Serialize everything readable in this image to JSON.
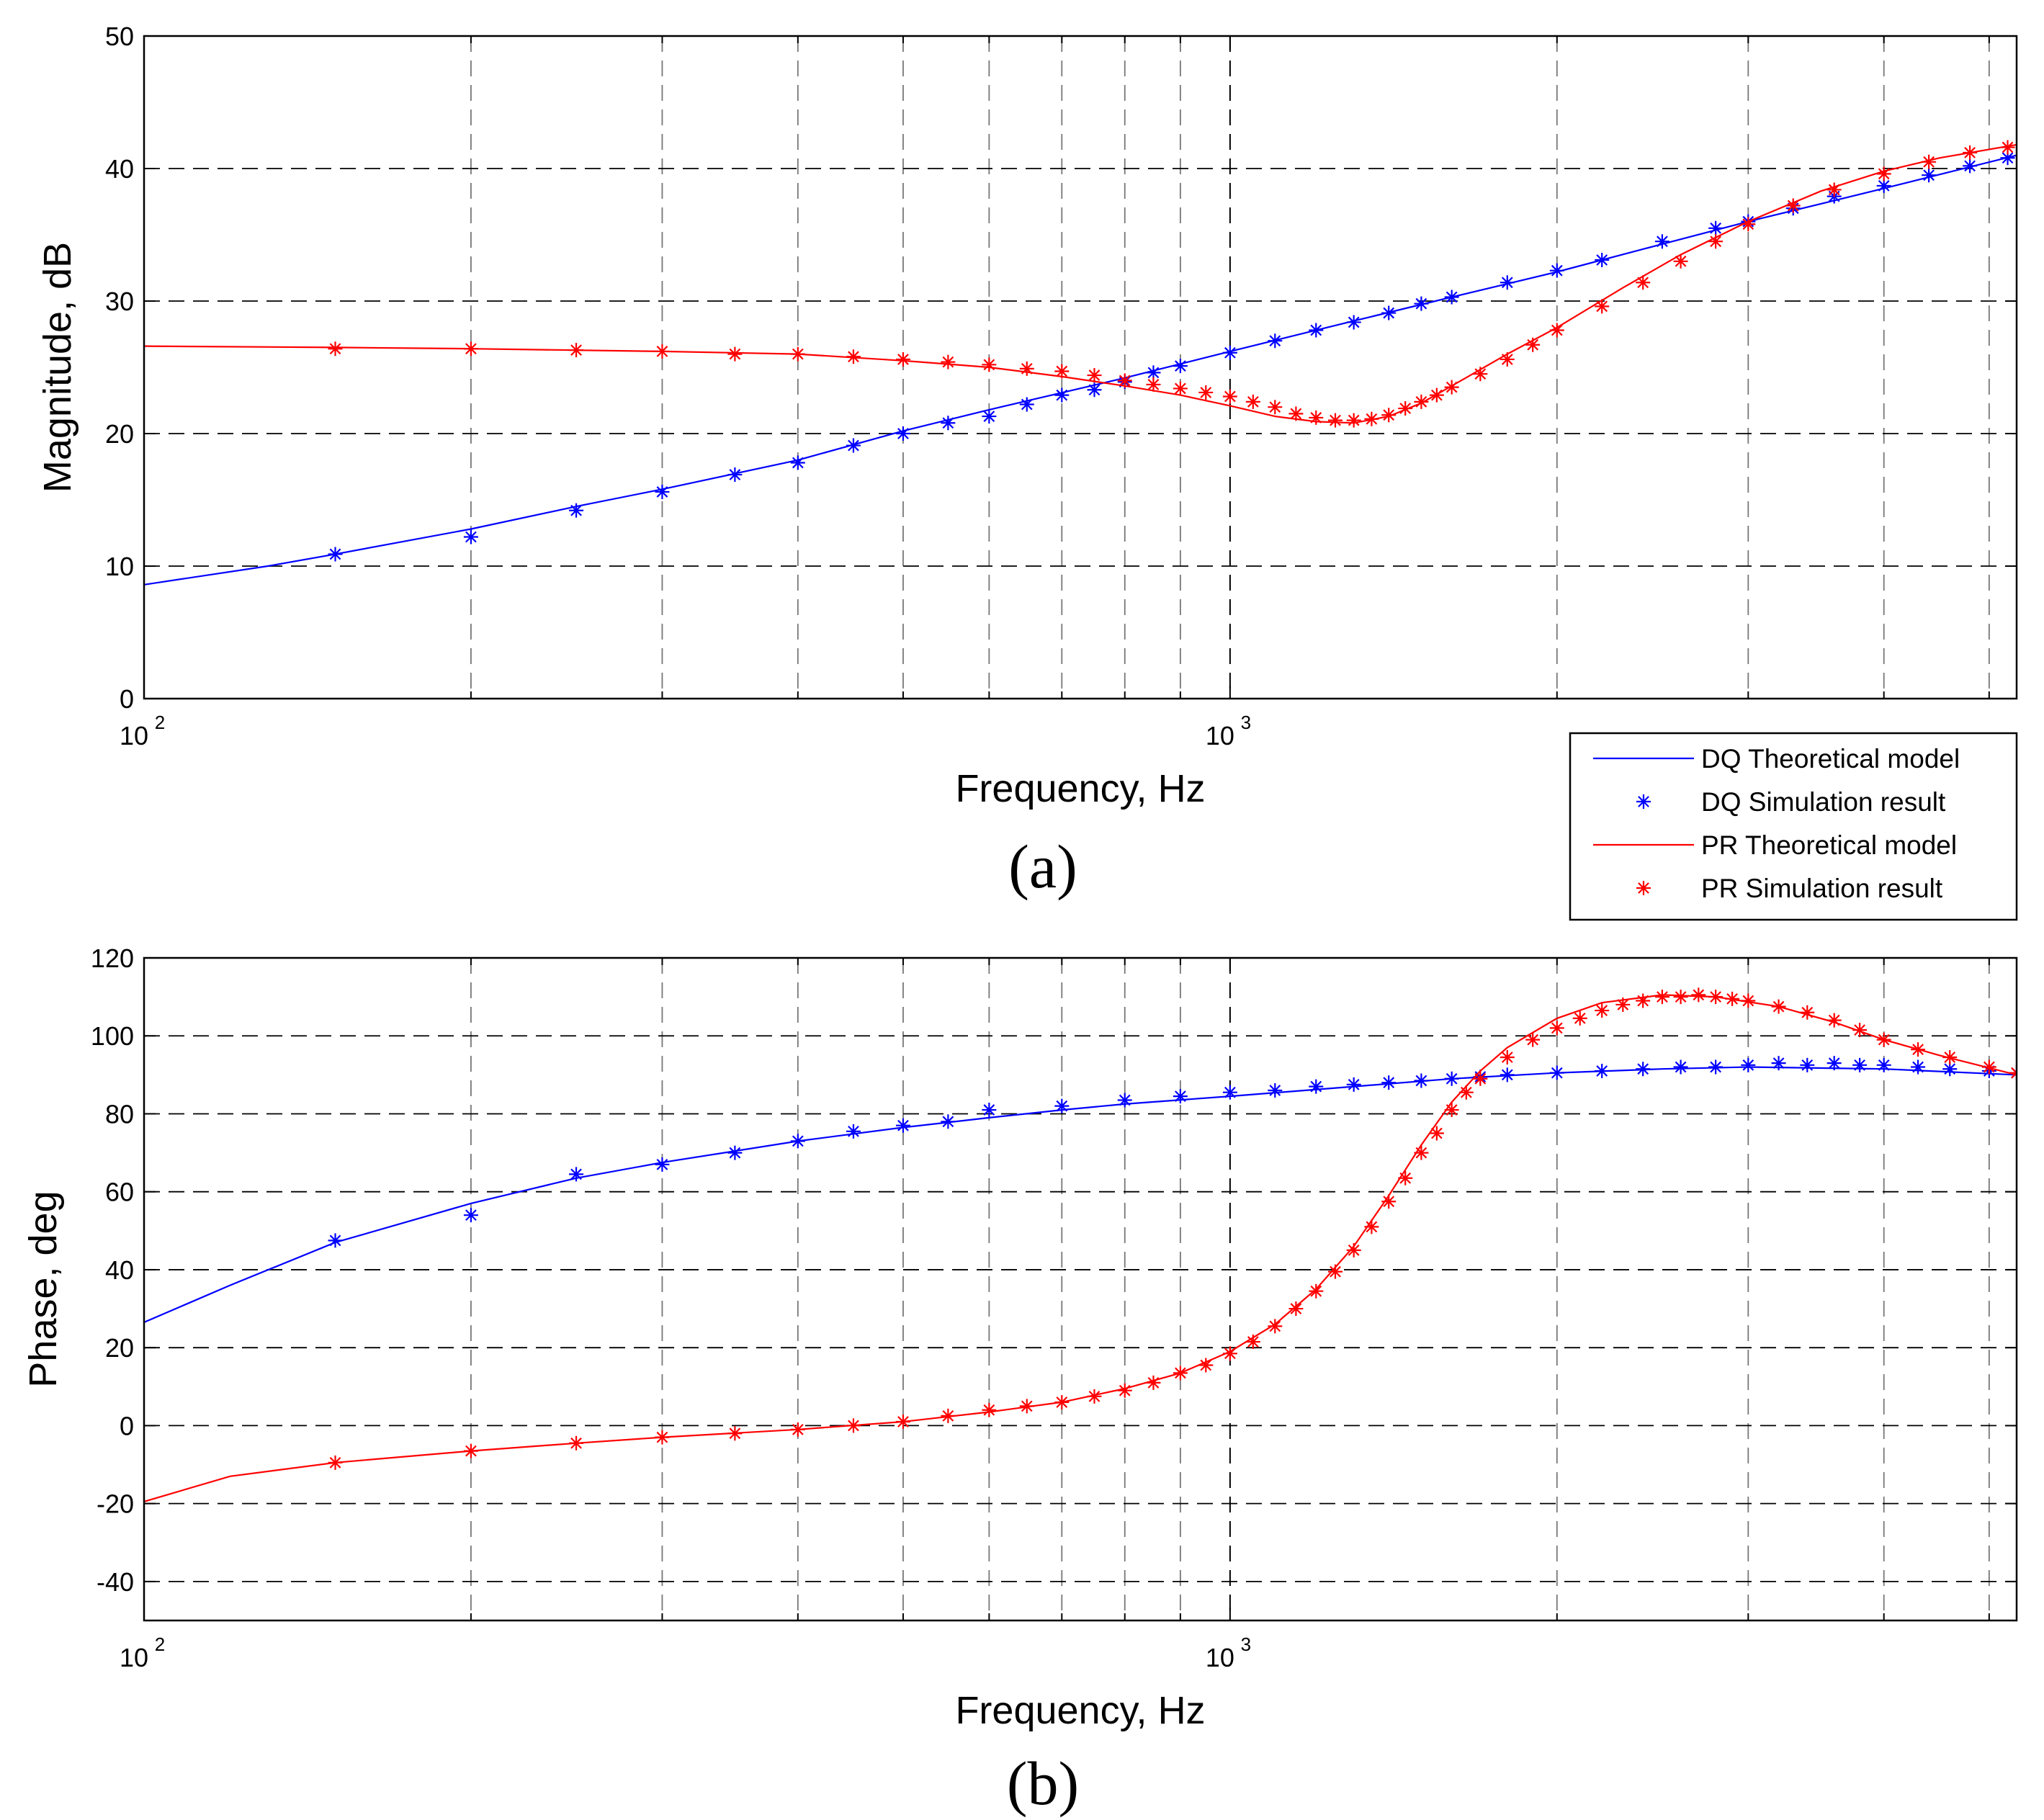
{
  "chart_data": [
    {
      "type": "line",
      "panel": "a",
      "caption": "(a)",
      "xlabel": "Frequency, Hz",
      "ylabel": "Magnitude, dB",
      "xscale": "log",
      "xlim": [
        100,
        5300
      ],
      "ylim": [
        0,
        50
      ],
      "yticks": [
        0,
        10,
        20,
        30,
        40,
        50
      ],
      "xticks": [
        {
          "base": "10",
          "exp": "2",
          "value": 100
        },
        {
          "base": "10",
          "exp": "3",
          "value": 1000
        }
      ],
      "grid": true,
      "legend": {
        "position": "outside-bottom-right",
        "entries": [
          {
            "label": "DQ Theoretical model",
            "color": "#0000ff",
            "style": "line"
          },
          {
            "label": "DQ Simulation result",
            "color": "#0000ff",
            "style": "marker"
          },
          {
            "label": "PR Theoretical model",
            "color": "#ff0000",
            "style": "line"
          },
          {
            "label": "PR Simulation result",
            "color": "#ff0000",
            "style": "marker"
          }
        ]
      },
      "series": [
        {
          "name": "DQ Theoretical model",
          "style": "line",
          "color": "#0000ff",
          "x": [
            100,
            130,
            150,
            200,
            250,
            300,
            400,
            500,
            600,
            800,
            1000,
            1300,
            1600,
            2000,
            2500,
            3000,
            4000,
            5300
          ],
          "y": [
            8.6,
            10.0,
            10.9,
            12.8,
            14.5,
            15.8,
            18.0,
            20.2,
            21.8,
            24.2,
            26.2,
            28.5,
            30.3,
            32.2,
            34.3,
            36.0,
            38.5,
            41.0
          ]
        },
        {
          "name": "DQ Simulation result",
          "style": "marker",
          "color": "#0000ff",
          "x": [
            150,
            200,
            250,
            300,
            350,
            400,
            450,
            500,
            550,
            600,
            650,
            700,
            750,
            800,
            850,
            900,
            1000,
            1100,
            1200,
            1300,
            1400,
            1500,
            1600,
            1800,
            2000,
            2200,
            2500,
            2800,
            3000,
            3300,
            3600,
            4000,
            4400,
            4800,
            5200
          ],
          "y": [
            10.9,
            12.2,
            14.2,
            15.6,
            16.9,
            17.8,
            19.1,
            20.0,
            20.8,
            21.3,
            22.2,
            22.9,
            23.3,
            23.9,
            24.6,
            25.1,
            26.1,
            27.0,
            27.8,
            28.4,
            29.1,
            29.8,
            30.3,
            31.4,
            32.3,
            33.1,
            34.5,
            35.5,
            36.0,
            37.0,
            37.9,
            38.7,
            39.5,
            40.2,
            40.8
          ]
        },
        {
          "name": "PR Theoretical model",
          "style": "line",
          "color": "#ff0000",
          "x": [
            100,
            150,
            200,
            300,
            400,
            500,
            600,
            700,
            800,
            900,
            1000,
            1100,
            1200,
            1300,
            1400,
            1500,
            1600,
            1800,
            2000,
            2300,
            2600,
            3000,
            3500,
            4000,
            4500,
            5300
          ],
          "y": [
            26.6,
            26.5,
            26.4,
            26.2,
            26.0,
            25.5,
            25.0,
            24.3,
            23.6,
            22.9,
            22.1,
            21.3,
            20.9,
            20.8,
            21.3,
            22.3,
            23.6,
            26.0,
            28.0,
            31.0,
            33.5,
            36.0,
            38.3,
            39.8,
            40.8,
            41.8
          ]
        },
        {
          "name": "PR Simulation result",
          "style": "marker",
          "color": "#ff0000",
          "x": [
            150,
            200,
            250,
            300,
            350,
            400,
            450,
            500,
            550,
            600,
            650,
            700,
            750,
            800,
            850,
            900,
            950,
            1000,
            1050,
            1100,
            1150,
            1200,
            1250,
            1300,
            1350,
            1400,
            1450,
            1500,
            1550,
            1600,
            1700,
            1800,
            1900,
            2000,
            2200,
            2400,
            2600,
            2800,
            3000,
            3300,
            3600,
            4000,
            4400,
            4800,
            5200
          ],
          "y": [
            26.4,
            26.4,
            26.3,
            26.2,
            26.0,
            26.0,
            25.8,
            25.6,
            25.4,
            25.2,
            24.9,
            24.7,
            24.4,
            24.0,
            23.7,
            23.4,
            23.1,
            22.8,
            22.4,
            22.0,
            21.5,
            21.2,
            21.0,
            21.0,
            21.1,
            21.4,
            21.9,
            22.4,
            22.9,
            23.5,
            24.5,
            25.6,
            26.7,
            27.8,
            29.6,
            31.4,
            33.0,
            34.5,
            35.8,
            37.2,
            38.4,
            39.6,
            40.5,
            41.2,
            41.6
          ]
        }
      ]
    },
    {
      "type": "line",
      "panel": "b",
      "caption": "(b)",
      "xlabel": "Frequency, Hz",
      "ylabel": "Phase, deg",
      "xscale": "log",
      "xlim": [
        100,
        5300
      ],
      "ylim": [
        -50,
        120
      ],
      "yticks": [
        -40,
        -20,
        0,
        20,
        40,
        60,
        80,
        100,
        120
      ],
      "xticks": [
        {
          "base": "10",
          "exp": "2",
          "value": 100
        },
        {
          "base": "10",
          "exp": "3",
          "value": 1000
        }
      ],
      "grid": true,
      "series": [
        {
          "name": "DQ Theoretical model",
          "style": "line",
          "color": "#0000ff",
          "x": [
            100,
            120,
            150,
            200,
            250,
            300,
            400,
            500,
            600,
            700,
            800,
            1000,
            1300,
            1600,
            2000,
            2500,
            3000,
            4000,
            5300
          ],
          "y": [
            26.5,
            36.0,
            47.0,
            57.0,
            63.5,
            67.5,
            73.0,
            76.5,
            79.0,
            81.0,
            82.5,
            84.5,
            87.0,
            89.0,
            90.5,
            91.5,
            92.0,
            91.5,
            90.0
          ]
        },
        {
          "name": "DQ Simulation result",
          "style": "marker",
          "color": "#0000ff",
          "x": [
            150,
            200,
            250,
            300,
            350,
            400,
            450,
            500,
            550,
            600,
            700,
            800,
            900,
            1000,
            1100,
            1200,
            1300,
            1400,
            1500,
            1600,
            1700,
            1800,
            2000,
            2200,
            2400,
            2600,
            2800,
            3000,
            3200,
            3400,
            3600,
            3800,
            4000,
            4300,
            4600,
            5000,
            5300
          ],
          "y": [
            47.5,
            54.0,
            64.5,
            67.0,
            70.0,
            73.0,
            75.5,
            77.0,
            78.0,
            81.0,
            82.0,
            83.5,
            84.5,
            85.5,
            86.0,
            87.0,
            87.5,
            88.0,
            88.5,
            89.0,
            89.5,
            90.0,
            90.5,
            91.0,
            91.5,
            92.0,
            92.0,
            92.5,
            93.0,
            92.5,
            93.0,
            92.5,
            92.5,
            92.0,
            91.5,
            91.0,
            90.5
          ]
        },
        {
          "name": "PR Theoretical model",
          "style": "line",
          "color": "#ff0000",
          "x": [
            100,
            120,
            150,
            200,
            250,
            300,
            400,
            500,
            600,
            700,
            800,
            900,
            1000,
            1100,
            1200,
            1300,
            1400,
            1500,
            1600,
            1700,
            1800,
            2000,
            2200,
            2500,
            2800,
            3200,
            3600,
            4000,
            4500,
            5300
          ],
          "y": [
            -19.5,
            -13.0,
            -9.5,
            -6.5,
            -4.5,
            -3.0,
            -1.0,
            1.0,
            3.5,
            6.0,
            9.5,
            13.5,
            19.0,
            26.0,
            35.0,
            46.0,
            59.0,
            72.0,
            83.0,
            91.0,
            97.0,
            104.5,
            108.5,
            110.5,
            110.0,
            107.5,
            103.5,
            99.0,
            95.0,
            90.0
          ]
        },
        {
          "name": "PR Simulation result",
          "style": "marker",
          "color": "#ff0000",
          "x": [
            150,
            200,
            250,
            300,
            350,
            400,
            450,
            500,
            550,
            600,
            650,
            700,
            750,
            800,
            850,
            900,
            950,
            1000,
            1050,
            1100,
            1150,
            1200,
            1250,
            1300,
            1350,
            1400,
            1450,
            1500,
            1550,
            1600,
            1650,
            1700,
            1800,
            1900,
            2000,
            2100,
            2200,
            2300,
            2400,
            2500,
            2600,
            2700,
            2800,
            2900,
            3000,
            3200,
            3400,
            3600,
            3800,
            4000,
            4300,
            4600,
            5000,
            5300
          ],
          "y": [
            -9.5,
            -6.5,
            -4.5,
            -3.0,
            -2.0,
            -1.0,
            0.0,
            1.0,
            2.5,
            4.0,
            5.0,
            6.0,
            7.5,
            9.0,
            11.0,
            13.5,
            15.5,
            18.5,
            21.5,
            25.5,
            30.0,
            34.5,
            39.5,
            45.0,
            51.0,
            57.5,
            63.5,
            70.0,
            75.0,
            81.0,
            85.5,
            89.0,
            94.5,
            99.0,
            102.0,
            104.5,
            106.5,
            108.0,
            109.0,
            110.0,
            110.0,
            110.5,
            110.0,
            109.5,
            109.0,
            107.5,
            106.0,
            104.0,
            101.5,
            99.0,
            96.5,
            94.5,
            92.0,
            90.5
          ]
        }
      ]
    }
  ]
}
